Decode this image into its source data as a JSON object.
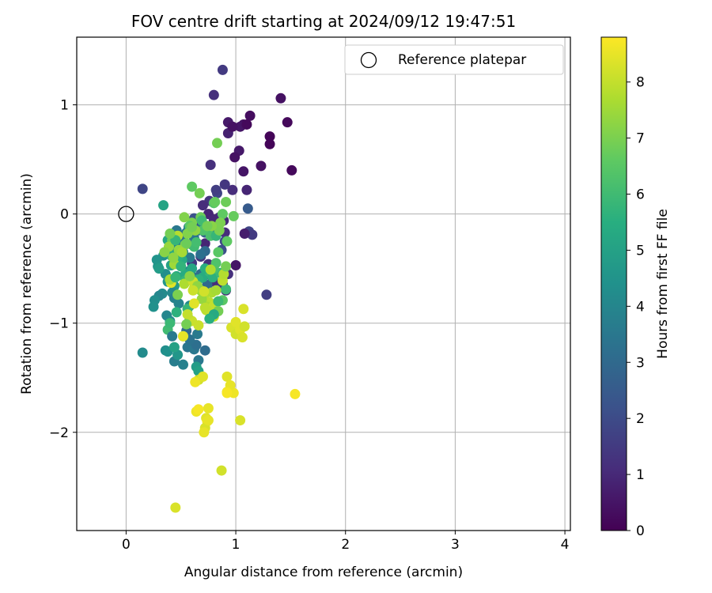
{
  "chart_data": {
    "type": "scatter",
    "title": "FOV centre drift starting at 2024/09/12 19:47:51",
    "xlabel": "Angular distance from reference (arcmin)",
    "ylabel": "Rotation from reference (arcmin)",
    "xlim": [
      -0.45,
      4.05
    ],
    "ylim": [
      -2.9,
      1.62
    ],
    "xticks": [
      0,
      1,
      2,
      3,
      4
    ],
    "yticks": [
      -2,
      -1,
      0,
      1
    ],
    "grid": true,
    "legend": {
      "placement": "top-right",
      "entries": [
        "Reference platepar"
      ]
    },
    "colorbar": {
      "label": "Hours from first FF file",
      "colormap": "viridis",
      "min": 0,
      "max": 8.8,
      "ticks": [
        0,
        1,
        2,
        3,
        4,
        5,
        6,
        7,
        8
      ]
    },
    "reference_point": {
      "x": 0,
      "y": 0
    },
    "series": [
      {
        "x": [
          0.88,
          0.8,
          1.41,
          1.47,
          1.13,
          0.93,
          1.07,
          1.04,
          1.1,
          0.93,
          1.31,
          1.31,
          1.03,
          0.99,
          0.97,
          1.23,
          1.51,
          1.07,
          0.77,
          0.97,
          1.1,
          1.11,
          1.12,
          1.15,
          1.08,
          1.0,
          0.93,
          0.9,
          0.83,
          0.82,
          0.76,
          0.7,
          0.75,
          0.85,
          1.28,
          0.15,
          0.8,
          0.89,
          0.9,
          0.72,
          0.68,
          0.6,
          0.58,
          0.75,
          0.8,
          0.78,
          0.88,
          0.91,
          0.7,
          0.65,
          0.62,
          0.82,
          0.9,
          0.87,
          0.72,
          0.7,
          0.66,
          0.62,
          0.6,
          0.72,
          0.68,
          0.55,
          0.57,
          0.5,
          0.58,
          0.56,
          0.68,
          0.74,
          0.6,
          0.52,
          0.46,
          0.46,
          0.49,
          0.41,
          0.34,
          0.28,
          0.36,
          0.38,
          0.44,
          0.42,
          0.33,
          0.3,
          0.26,
          0.44,
          0.48,
          0.58,
          0.37,
          0.4,
          0.25,
          0.29,
          0.3,
          0.41,
          0.46,
          0.54,
          0.46,
          0.56,
          0.38,
          0.4,
          0.42,
          0.56,
          0.62,
          0.64,
          0.55,
          0.58,
          0.65,
          0.72,
          0.66,
          0.44,
          0.52,
          0.36,
          0.38,
          0.47,
          0.64,
          0.58,
          0.52,
          0.15,
          0.66,
          0.44,
          0.38,
          0.41,
          0.51,
          0.48,
          0.54,
          0.6,
          0.7,
          0.66,
          0.76,
          0.72,
          0.79,
          0.91,
          0.86,
          0.8,
          0.82,
          0.84,
          0.92,
          0.68,
          0.6,
          0.58,
          0.75,
          0.77,
          0.62,
          0.82,
          0.64,
          0.7,
          0.6,
          0.67,
          0.8,
          0.88,
          0.81,
          0.91,
          0.83,
          0.85,
          0.86,
          0.78,
          0.63,
          0.56,
          0.54,
          0.48,
          0.44,
          0.43,
          0.51,
          0.53,
          0.62,
          0.71,
          0.76,
          0.74,
          0.75,
          0.61,
          0.58,
          0.68,
          0.88,
          0.89,
          0.78,
          0.69,
          0.65,
          0.82,
          0.77,
          0.72,
          0.8,
          0.66,
          0.96,
          1.0,
          1.04,
          1.06,
          1.0,
          1.08,
          1.07,
          0.8,
          0.73,
          0.79,
          0.6,
          0.56,
          0.62,
          0.66,
          0.63,
          0.52,
          0.92,
          0.98,
          1.54,
          1.04,
          0.95,
          0.92,
          0.92,
          0.75,
          0.73,
          0.74,
          0.72,
          0.71,
          0.7,
          0.75,
          0.64,
          0.66,
          0.87,
          0.45,
          0.41,
          0.61,
          0.71,
          0.4,
          0.47,
          0.42,
          0.39,
          0.47,
          0.35,
          0.55,
          0.6,
          0.53,
          0.69,
          0.74,
          0.98,
          0.91,
          0.88,
          0.84,
          0.84,
          0.8,
          0.76,
          0.55,
          0.5,
          0.45,
          0.45,
          0.4,
          0.34
        ],
        "y": [
          1.32,
          1.09,
          1.06,
          0.84,
          0.9,
          0.84,
          0.82,
          0.8,
          0.82,
          0.74,
          0.71,
          0.64,
          0.58,
          0.52,
          0.8,
          0.44,
          0.4,
          0.39,
          0.45,
          0.22,
          0.22,
          0.05,
          -0.16,
          -0.19,
          -0.18,
          -0.47,
          -0.55,
          0.27,
          0.19,
          0.22,
          0.12,
          0.08,
          0.0,
          -0.03,
          -0.74,
          0.23,
          -0.05,
          -0.06,
          -0.17,
          -0.27,
          -0.39,
          -0.45,
          -0.52,
          -0.46,
          -0.62,
          -0.57,
          -0.64,
          -0.7,
          -0.58,
          -0.1,
          -0.04,
          -0.15,
          -0.25,
          -0.33,
          -0.17,
          -0.09,
          -0.15,
          -0.22,
          -0.28,
          -0.34,
          -0.37,
          -0.17,
          -0.12,
          -0.2,
          -0.4,
          -0.53,
          -0.55,
          -0.65,
          -0.57,
          -0.35,
          -0.15,
          -0.25,
          -0.35,
          -0.32,
          -0.38,
          -0.42,
          -0.55,
          -0.62,
          -0.66,
          -0.72,
          -0.73,
          -0.75,
          -0.79,
          -0.77,
          -0.82,
          -0.84,
          -0.93,
          -0.98,
          -0.85,
          -0.48,
          -0.5,
          -0.47,
          -0.57,
          -0.55,
          -0.9,
          -0.87,
          -1.06,
          -1.0,
          -1.12,
          -1.22,
          -1.24,
          -1.2,
          -1.07,
          -1.15,
          -1.1,
          -1.25,
          -1.34,
          -1.35,
          -1.38,
          -1.25,
          -1.26,
          -1.29,
          -1.4,
          -0.97,
          -1.12,
          -1.27,
          -1.44,
          -1.22,
          -0.24,
          -0.38,
          -0.42,
          -0.39,
          -0.61,
          -0.5,
          -0.58,
          -0.6,
          -0.53,
          -0.5,
          -0.58,
          -0.69,
          -0.54,
          -0.5,
          -0.45,
          -0.35,
          -0.25,
          -0.03,
          -0.08,
          -0.11,
          -0.14,
          -0.2,
          -0.3,
          -0.2,
          -0.26,
          -0.15,
          0.25,
          0.19,
          0.1,
          0.0,
          0.11,
          0.11,
          0.65,
          -0.15,
          -0.08,
          -0.11,
          -0.15,
          -0.18,
          -0.28,
          -0.33,
          -0.46,
          -0.4,
          -0.35,
          -0.64,
          -0.68,
          -0.75,
          -0.81,
          -0.85,
          -0.89,
          -0.62,
          -0.57,
          -0.7,
          -0.61,
          -0.55,
          -0.72,
          -0.78,
          -0.66,
          -0.7,
          -0.51,
          -0.86,
          -0.94,
          -1.02,
          -1.04,
          -1.1,
          -1.06,
          -1.13,
          -0.99,
          -1.03,
          -0.87,
          -0.84,
          -0.88,
          -0.92,
          -0.98,
          -0.92,
          -0.82,
          -1.52,
          -1.54,
          -1.12,
          -1.49,
          -1.64,
          -1.65,
          -1.89,
          -1.57,
          -1.63,
          -1.64,
          -1.78,
          -1.87,
          -1.9,
          -1.96,
          -2.0,
          -1.49,
          -1.89,
          -1.81,
          -1.79,
          -2.35,
          -2.69,
          -0.63,
          -0.7,
          -0.71,
          -0.6,
          -0.74,
          -0.24,
          -0.3,
          -0.2,
          -0.35,
          -0.27,
          -0.12,
          -0.03,
          -0.06,
          -0.11,
          -0.02,
          -0.48,
          -0.79,
          -0.8,
          -0.89,
          -0.92,
          -0.96,
          -1.01,
          -0.48,
          -0.58,
          -0.24,
          -0.18,
          0.08
        ],
        "hours": [
          1.5,
          1.2,
          0.4,
          0.2,
          0.3,
          0.6,
          0.4,
          0.5,
          0.2,
          0.8,
          0.1,
          0.1,
          0.6,
          0.4,
          0.4,
          0.4,
          0.2,
          0.5,
          1.2,
          1.1,
          0.9,
          2.5,
          1.8,
          1.5,
          0.7,
          0.5,
          1.2,
          1.4,
          1.8,
          1.6,
          1.3,
          1.1,
          0.9,
          1.2,
          1.6,
          1.8,
          1.0,
          1.0,
          1.1,
          0.9,
          1.3,
          1.5,
          1.7,
          1.2,
          1.1,
          1.3,
          1.5,
          1.0,
          1.8,
          2.0,
          2.2,
          2.6,
          1.9,
          2.1,
          2.8,
          3.0,
          3.2,
          3.4,
          3.3,
          3.0,
          3.2,
          3.5,
          3.7,
          3.3,
          3.6,
          3.8,
          3.1,
          3.0,
          3.4,
          3.9,
          3.5,
          3.7,
          4.0,
          4.2,
          4.4,
          4.5,
          4.3,
          4.6,
          4.7,
          4.1,
          4.2,
          4.0,
          4.3,
          3.8,
          3.9,
          4.1,
          4.0,
          4.2,
          4.4,
          4.6,
          4.8,
          5.0,
          5.2,
          5.4,
          5.6,
          5.8,
          6.0,
          5.9,
          3.6,
          3.4,
          3.5,
          3.2,
          3.0,
          3.3,
          3.6,
          3.1,
          3.5,
          3.7,
          3.8,
          4.3,
          4.4,
          4.6,
          4.8,
          5.0,
          6.0,
          4.2,
          5.0,
          5.0,
          5.2,
          5.4,
          5.4,
          5.6,
          5.8,
          5.2,
          5.4,
          5.6,
          5.8,
          5.5,
          5.6,
          5.9,
          5.9,
          6.2,
          6.3,
          6.5,
          6.6,
          6.8,
          7.0,
          6.5,
          6.4,
          6.2,
          6.0,
          5.8,
          6.1,
          6.3,
          6.6,
          6.9,
          6.4,
          6.6,
          6.7,
          6.8,
          6.9,
          7.0,
          7.0,
          7.2,
          7.3,
          7.1,
          7.2,
          7.4,
          7.5,
          7.3,
          7.6,
          7.7,
          7.5,
          7.8,
          7.9,
          7.7,
          8.0,
          8.1,
          7.2,
          7.5,
          7.9,
          7.8,
          7.7,
          7.4,
          7.3,
          7.6,
          7.7,
          7.9,
          8.0,
          8.1,
          8.3,
          8.2,
          8.4,
          8.3,
          8.4,
          8.2,
          8.3,
          8.0,
          7.9,
          8.2,
          8.1,
          8.0,
          8.4,
          8.2,
          8.6,
          8.5,
          8.4,
          8.6,
          8.7,
          8.3,
          8.5,
          8.6,
          8.7,
          8.5,
          8.4,
          8.6,
          8.3,
          8.5,
          8.4,
          8.5,
          8.6,
          8.7,
          8.2,
          8.3,
          8.4,
          8.1,
          8.2,
          7.6,
          7.0,
          6.8,
          7.4,
          7.8,
          7.2,
          6.8,
          6.9,
          7.1,
          6.0,
          6.9,
          6.7,
          6.9,
          6.5,
          5.9,
          6.9,
          5.3,
          5.5,
          6.9,
          5.7,
          5.8,
          5.8,
          6.9,
          5.1,
          5.6,
          4.8,
          5.0,
          5.3,
          5.5
        ]
      }
    ]
  }
}
